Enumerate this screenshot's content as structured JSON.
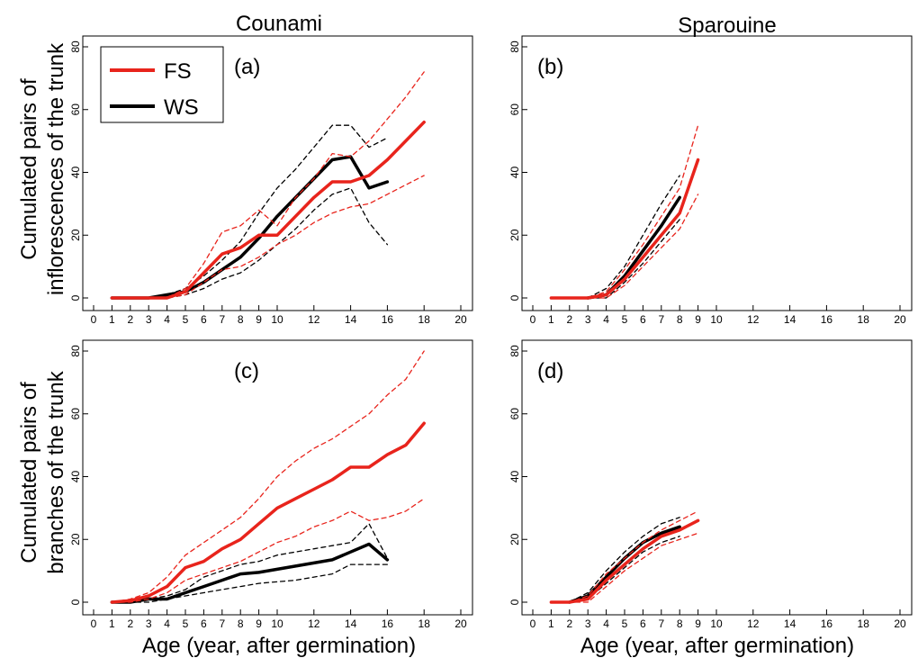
{
  "figure": {
    "column_titles": [
      "Counami",
      "Sparouine"
    ],
    "row_ylabels": [
      [
        "Cumulated pairs of",
        "inflorescences of the trunk"
      ],
      [
        "Cumulated pairs of",
        "branches of the trunk"
      ]
    ],
    "xlabel": "Age (year, after germination)",
    "legend": [
      {
        "label": "FS",
        "color": "#e8241c"
      },
      {
        "label": "WS",
        "color": "#000000"
      }
    ],
    "colors": {
      "FS": "#e8241c",
      "WS": "#000000"
    }
  },
  "chart_data": [
    {
      "panel": "(a)",
      "type": "line",
      "xlim": [
        0,
        20
      ],
      "ylim": [
        0,
        80
      ],
      "xticks": [
        0,
        1,
        2,
        3,
        4,
        5,
        6,
        7,
        8,
        9,
        10,
        12,
        14,
        16,
        18,
        20
      ],
      "yticks": [
        0,
        20,
        40,
        60,
        80
      ],
      "series": [
        {
          "name": "FS",
          "style": "solid",
          "x": [
            1,
            2,
            3,
            4,
            5,
            6,
            7,
            8,
            9,
            10,
            11,
            12,
            13,
            14,
            15,
            16,
            17,
            18
          ],
          "y": [
            0,
            0,
            0,
            0,
            2,
            8,
            14,
            16,
            20,
            20,
            26,
            32,
            37,
            37,
            39,
            44,
            50,
            56
          ]
        },
        {
          "name": "FS",
          "style": "dashed",
          "x": [
            1,
            2,
            3,
            4,
            5,
            6,
            7,
            8,
            9,
            10,
            11,
            12,
            13,
            14,
            15,
            16,
            17,
            18
          ],
          "y": [
            0,
            0,
            0,
            0,
            3,
            11,
            21,
            23,
            28,
            23,
            32,
            38,
            46,
            45,
            50,
            57,
            64,
            72
          ]
        },
        {
          "name": "FS",
          "style": "dashed",
          "x": [
            1,
            2,
            3,
            4,
            5,
            6,
            7,
            8,
            9,
            10,
            11,
            12,
            13,
            14,
            15,
            16,
            17,
            18
          ],
          "y": [
            0,
            0,
            0,
            0,
            1,
            5,
            9,
            10,
            13,
            17,
            20,
            24,
            27,
            29,
            30,
            33,
            36,
            39
          ]
        },
        {
          "name": "WS",
          "style": "solid",
          "x": [
            1,
            2,
            3,
            4,
            5,
            6,
            7,
            8,
            9,
            10,
            11,
            12,
            13,
            14,
            15,
            16
          ],
          "y": [
            0,
            0,
            0,
            1,
            2,
            5,
            9,
            13,
            19,
            26,
            32,
            38,
            44,
            45,
            35,
            37
          ]
        },
        {
          "name": "WS",
          "style": "dashed",
          "x": [
            1,
            2,
            3,
            4,
            5,
            6,
            7,
            8,
            9,
            10,
            11,
            12,
            13,
            14,
            15,
            16
          ],
          "y": [
            0,
            0,
            0,
            1,
            3,
            7,
            12,
            18,
            27,
            35,
            41,
            48,
            55,
            55,
            48,
            51
          ]
        },
        {
          "name": "WS",
          "style": "dashed",
          "x": [
            1,
            2,
            3,
            4,
            5,
            6,
            7,
            8,
            9,
            10,
            11,
            12,
            13,
            14,
            15,
            16
          ],
          "y": [
            0,
            0,
            0,
            0,
            1,
            3,
            6,
            8,
            12,
            17,
            22,
            28,
            33,
            35,
            24,
            17
          ]
        }
      ]
    },
    {
      "panel": "(b)",
      "type": "line",
      "xlim": [
        0,
        20
      ],
      "ylim": [
        0,
        80
      ],
      "xticks": [
        0,
        1,
        2,
        3,
        4,
        5,
        6,
        7,
        8,
        9,
        10,
        12,
        14,
        16,
        18,
        20
      ],
      "yticks": [
        0,
        20,
        40,
        60,
        80
      ],
      "series": [
        {
          "name": "FS",
          "style": "solid",
          "x": [
            1,
            2,
            3,
            4,
            5,
            6,
            7,
            8,
            9
          ],
          "y": [
            0,
            0,
            0,
            1,
            6,
            13,
            20,
            27,
            44
          ]
        },
        {
          "name": "FS",
          "style": "dashed",
          "x": [
            1,
            2,
            3,
            4,
            5,
            6,
            7,
            8,
            9
          ],
          "y": [
            0,
            0,
            0,
            2,
            9,
            17,
            26,
            35,
            55
          ]
        },
        {
          "name": "FS",
          "style": "dashed",
          "x": [
            1,
            2,
            3,
            4,
            5,
            6,
            7,
            8,
            9
          ],
          "y": [
            0,
            0,
            0,
            0,
            4,
            10,
            16,
            22,
            33
          ]
        },
        {
          "name": "WS",
          "style": "solid",
          "x": [
            3,
            4,
            5,
            6,
            7,
            8
          ],
          "y": [
            0,
            1,
            7,
            15,
            23,
            32
          ]
        },
        {
          "name": "WS",
          "style": "dashed",
          "x": [
            3,
            4,
            5,
            6,
            7,
            8
          ],
          "y": [
            0,
            3,
            10,
            20,
            30,
            39
          ]
        },
        {
          "name": "WS",
          "style": "dashed",
          "x": [
            3,
            4,
            5,
            6,
            7,
            8
          ],
          "y": [
            0,
            0,
            5,
            11,
            18,
            25
          ]
        }
      ]
    },
    {
      "panel": "(c)",
      "type": "line",
      "xlim": [
        0,
        20
      ],
      "ylim": [
        0,
        80
      ],
      "xticks": [
        0,
        1,
        2,
        3,
        4,
        5,
        6,
        7,
        8,
        9,
        10,
        12,
        14,
        16,
        18,
        20
      ],
      "yticks": [
        0,
        20,
        40,
        60,
        80
      ],
      "series": [
        {
          "name": "FS",
          "style": "solid",
          "x": [
            1,
            2,
            3,
            4,
            5,
            6,
            7,
            8,
            9,
            10,
            11,
            12,
            13,
            14,
            15,
            16,
            17,
            18
          ],
          "y": [
            0,
            0.5,
            2,
            5,
            11,
            13,
            17,
            20,
            25,
            30,
            33,
            36,
            39,
            43,
            43,
            47,
            50,
            57
          ]
        },
        {
          "name": "FS",
          "style": "dashed",
          "x": [
            1,
            2,
            3,
            4,
            5,
            6,
            7,
            8,
            9,
            10,
            11,
            12,
            13,
            14,
            15,
            16,
            17,
            18
          ],
          "y": [
            0,
            1,
            3,
            8,
            15,
            19,
            23,
            27,
            33,
            40,
            45,
            49,
            52,
            56,
            60,
            66,
            71,
            80
          ]
        },
        {
          "name": "FS",
          "style": "dashed",
          "x": [
            1,
            2,
            3,
            4,
            5,
            6,
            7,
            8,
            9,
            10,
            11,
            12,
            13,
            14,
            15,
            16,
            17,
            18
          ],
          "y": [
            0,
            0,
            1,
            3,
            7,
            9,
            11,
            13,
            16,
            19,
            21,
            24,
            26,
            29,
            26,
            27,
            29,
            33
          ]
        },
        {
          "name": "WS",
          "style": "solid",
          "x": [
            1,
            2,
            3,
            4,
            5,
            6,
            7,
            8,
            9,
            10,
            11,
            12,
            13,
            14,
            15,
            16
          ],
          "y": [
            0,
            0,
            1,
            1,
            3,
            5,
            7,
            9,
            9.5,
            10.5,
            11.5,
            12.5,
            13.5,
            16,
            18.5,
            13.5
          ]
        },
        {
          "name": "WS",
          "style": "dashed",
          "x": [
            1,
            2,
            3,
            4,
            5,
            6,
            7,
            8,
            9,
            10,
            11,
            12,
            13,
            14,
            15,
            16
          ],
          "y": [
            0,
            0,
            1,
            2,
            4,
            8,
            10,
            12,
            13,
            15,
            16,
            17,
            18,
            19,
            25,
            14
          ]
        },
        {
          "name": "WS",
          "style": "dashed",
          "x": [
            1,
            2,
            3,
            4,
            5,
            6,
            7,
            8,
            9,
            10,
            11,
            12,
            13,
            14,
            15,
            16
          ],
          "y": [
            0,
            0,
            0,
            1,
            2,
            3,
            4,
            5,
            6,
            6.5,
            7,
            8,
            9,
            12,
            12,
            12
          ]
        }
      ]
    },
    {
      "panel": "(d)",
      "type": "line",
      "xlim": [
        0,
        20
      ],
      "ylim": [
        0,
        80
      ],
      "xticks": [
        0,
        1,
        2,
        3,
        4,
        5,
        6,
        7,
        8,
        9,
        10,
        12,
        14,
        16,
        18,
        20
      ],
      "yticks": [
        0,
        20,
        40,
        60,
        80
      ],
      "series": [
        {
          "name": "FS",
          "style": "solid",
          "x": [
            1,
            2,
            3,
            4,
            5,
            6,
            7,
            8,
            9
          ],
          "y": [
            0,
            0,
            1,
            7,
            12,
            17,
            21,
            23,
            26
          ]
        },
        {
          "name": "FS",
          "style": "dashed",
          "x": [
            1,
            2,
            3,
            4,
            5,
            6,
            7,
            8,
            9
          ],
          "y": [
            0,
            0,
            2,
            9,
            14,
            19,
            23,
            26,
            29
          ]
        },
        {
          "name": "FS",
          "style": "dashed",
          "x": [
            1,
            2,
            3,
            4,
            5,
            6,
            7,
            8,
            9
          ],
          "y": [
            0,
            0,
            0,
            5,
            10,
            14,
            18,
            20,
            22
          ]
        },
        {
          "name": "WS",
          "style": "solid",
          "x": [
            2,
            3,
            4,
            5,
            6,
            7,
            8
          ],
          "y": [
            0,
            2,
            8,
            14,
            19,
            22,
            24
          ]
        },
        {
          "name": "WS",
          "style": "dashed",
          "x": [
            2,
            3,
            4,
            5,
            6,
            7,
            8
          ],
          "y": [
            0,
            3,
            10,
            16,
            21,
            25,
            27
          ]
        },
        {
          "name": "WS",
          "style": "dashed",
          "x": [
            2,
            3,
            4,
            5,
            6,
            7,
            8
          ],
          "y": [
            0,
            1,
            6,
            11,
            16,
            19,
            21
          ]
        }
      ]
    }
  ]
}
